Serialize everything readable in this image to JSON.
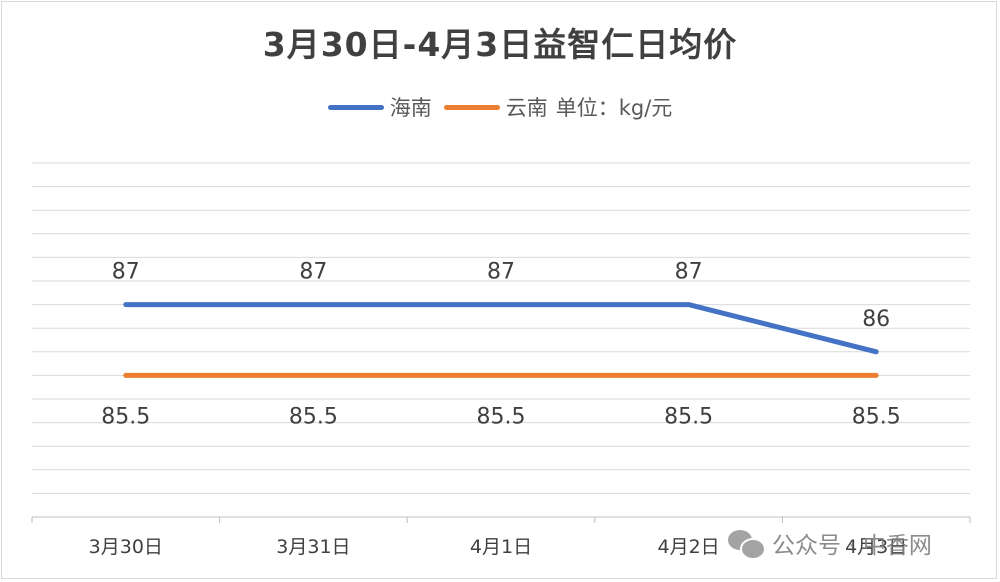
{
  "chart_data": {
    "type": "line",
    "title": "3月30日-4月3日益智仁日均价",
    "unit_label": "单位：kg/元",
    "categories": [
      "3月30日",
      "3月31日",
      "4月1日",
      "4月2日",
      "4月3日"
    ],
    "series": [
      {
        "name": "海南",
        "color": "#4472C4",
        "values": [
          87,
          87,
          87,
          87,
          86
        ]
      },
      {
        "name": "云南",
        "color": "#ED7D31",
        "values": [
          85.5,
          85.5,
          85.5,
          85.5,
          85.5
        ]
      }
    ],
    "ylim": [
      82.5,
      90
    ],
    "y_grid_step": 0.5,
    "grid": true,
    "legend_position": "top",
    "xlabel": "",
    "ylabel": ""
  },
  "watermark": {
    "text": "公众号 · 中香网",
    "icon": "wechat-icon"
  }
}
